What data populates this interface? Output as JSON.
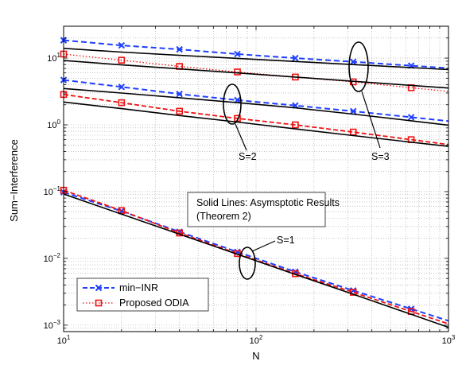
{
  "chart_data": {
    "type": "line",
    "title": "",
    "xlabel": "N",
    "ylabel": "Sum−Interference",
    "xscale": "log",
    "yscale": "log",
    "xlim": [
      10,
      1000
    ],
    "ylim": [
      0.0008,
      30
    ],
    "grid": true,
    "x_ticks": [
      {
        "value": 10,
        "base": "10",
        "exp": "1"
      },
      {
        "value": 100,
        "base": "10",
        "exp": "2"
      },
      {
        "value": 1000,
        "base": "10",
        "exp": "3"
      }
    ],
    "y_ticks": [
      {
        "value": 0.001,
        "base": "10",
        "exp": "−3"
      },
      {
        "value": 0.01,
        "base": "10",
        "exp": "−2"
      },
      {
        "value": 0.1,
        "base": "10",
        "exp": "−1"
      },
      {
        "value": 1,
        "base": "10",
        "exp": "0"
      },
      {
        "value": 10,
        "base": "10",
        "exp": "1"
      }
    ],
    "x": [
      10,
      20,
      40,
      80,
      160,
      320,
      640
    ],
    "legend": {
      "placement": "bottom-left",
      "entries": [
        "min−INR",
        "Proposed ODIA"
      ]
    },
    "series": [
      {
        "name": "min−INR",
        "group": "S=1",
        "style": "min-inr",
        "values": [
          0.098,
          0.051,
          0.025,
          0.0125,
          0.0063,
          0.0033,
          0.00175
        ]
      },
      {
        "name": "Proposed ODIA",
        "group": "S=1",
        "style": "odia",
        "values": [
          0.105,
          0.052,
          0.024,
          0.0118,
          0.0059,
          0.0031,
          0.0016
        ]
      },
      {
        "group": "S=1",
        "style": "asymptotic",
        "values": [
          0.092,
          0.046,
          0.023,
          0.0115,
          0.00575,
          0.0029,
          0.00145
        ]
      },
      {
        "name": "min−INR",
        "group": "S=2",
        "style": "min-inr",
        "values": [
          4.7,
          3.7,
          2.9,
          2.35,
          1.95,
          1.6,
          1.3
        ]
      },
      {
        "name": "Proposed ODIA",
        "group": "S=2",
        "style": "odia",
        "values": [
          2.85,
          2.15,
          1.6,
          1.25,
          1.0,
          0.78,
          0.6
        ]
      },
      {
        "group": "S=2",
        "style": "asymptotic",
        "values": [
          3.5,
          3.0,
          2.55,
          2.15,
          1.8,
          1.45,
          1.15
        ]
      },
      {
        "group": "S=2",
        "style": "asymptotic",
        "values": [
          2.2,
          1.75,
          1.38,
          1.1,
          0.87,
          0.69,
          0.55
        ]
      },
      {
        "name": "min−INR",
        "group": "S=3",
        "style": "min-inr",
        "values": [
          18.5,
          15.5,
          13.5,
          11.5,
          10.0,
          8.8,
          7.7
        ]
      },
      {
        "name": "Proposed ODIA",
        "group": "S=3",
        "style": "odia",
        "values": [
          11.5,
          9.3,
          7.5,
          6.2,
          5.2,
          4.4,
          3.6
        ]
      },
      {
        "group": "S=3",
        "style": "asymptotic",
        "values": [
          14.0,
          12.3,
          11.0,
          9.9,
          8.9,
          8.0,
          7.2
        ]
      },
      {
        "group": "S=3",
        "style": "asymptotic",
        "values": [
          9.2,
          7.9,
          6.9,
          6.0,
          5.2,
          4.5,
          3.9
        ]
      }
    ],
    "annotations": [
      {
        "id": "s1",
        "label": "S=1"
      },
      {
        "id": "s2",
        "label": "S=2"
      },
      {
        "id": "s3",
        "label": "S=3"
      }
    ],
    "note_box": {
      "line1": "Solid Lines: Asymsptotic Results",
      "line2": "(Theorem 2)"
    }
  },
  "colors": {
    "min_inr": "#1f3fff",
    "odia": "#ee1111",
    "asymptotic": "#000000",
    "grid": "#a0a0a0"
  }
}
